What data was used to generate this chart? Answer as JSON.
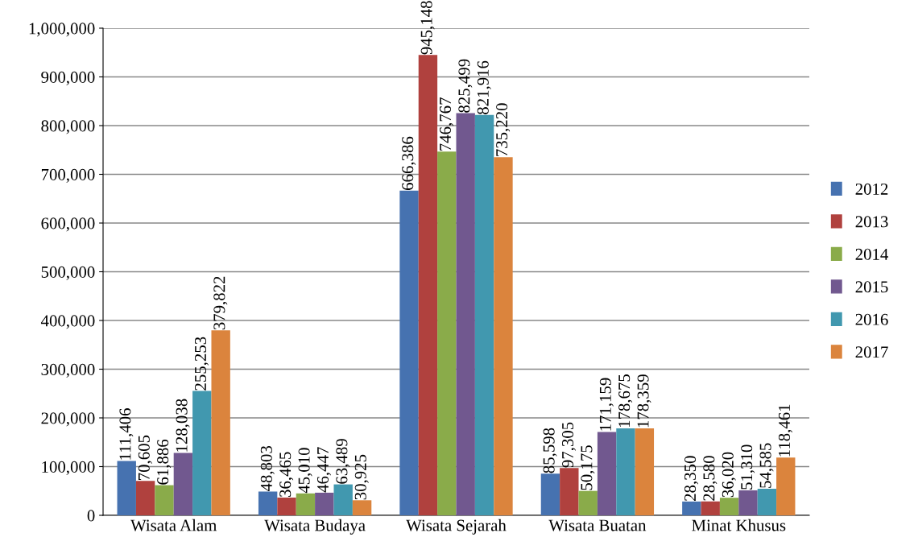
{
  "chart_data": {
    "type": "bar",
    "categories": [
      "Wisata Alam",
      "Wisata Budaya",
      "Wisata Sejarah",
      "Wisata Buatan",
      "Minat Khusus"
    ],
    "series": [
      {
        "name": "2012",
        "color": "#4672b0",
        "values": [
          111406,
          48803,
          666386,
          85598,
          28350
        ],
        "value_labels": [
          "111,406",
          "48,803",
          "666,386",
          "85,598",
          "28,350"
        ]
      },
      {
        "name": "2013",
        "color": "#b0413e",
        "values": [
          70605,
          36465,
          945148,
          97305,
          28580
        ],
        "value_labels": [
          "70,605",
          "36,465",
          "945,148",
          "97,305",
          "28,580"
        ]
      },
      {
        "name": "2014",
        "color": "#8aab4a",
        "values": [
          61886,
          45010,
          746767,
          50175,
          36020
        ],
        "value_labels": [
          "61,886",
          "45,010",
          "746,767",
          "50,175",
          "36,020"
        ]
      },
      {
        "name": "2015",
        "color": "#71588f",
        "values": [
          128038,
          46447,
          825499,
          171159,
          51310
        ],
        "value_labels": [
          "128,038",
          "46,447",
          "825,499",
          "171,159",
          "51,310"
        ]
      },
      {
        "name": "2016",
        "color": "#4198af",
        "values": [
          255253,
          63489,
          821916,
          178675,
          54585
        ],
        "value_labels": [
          "255,253",
          "63,489",
          "821,916",
          "178,675",
          "54,585"
        ]
      },
      {
        "name": "2017",
        "color": "#db843d",
        "values": [
          379822,
          30925,
          735220,
          178359,
          118461
        ],
        "value_labels": [
          "379,822",
          "30,925",
          "735,220",
          "178,359",
          "118,461"
        ]
      }
    ],
    "ylim": [
      0,
      1000000
    ],
    "yticks": [
      {
        "value": 0,
        "label": "0"
      },
      {
        "value": 100000,
        "label": "100,000"
      },
      {
        "value": 200000,
        "label": "200,000"
      },
      {
        "value": 300000,
        "label": "300,000"
      },
      {
        "value": 400000,
        "label": "400,000"
      },
      {
        "value": 500000,
        "label": "500,000"
      },
      {
        "value": 600000,
        "label": "600,000"
      },
      {
        "value": 700000,
        "label": "700,000"
      },
      {
        "value": 800000,
        "label": "800,000"
      },
      {
        "value": 900000,
        "label": "900,000"
      },
      {
        "value": 1000000,
        "label": "1,000,000"
      }
    ],
    "grid": "y",
    "legend": "right"
  }
}
